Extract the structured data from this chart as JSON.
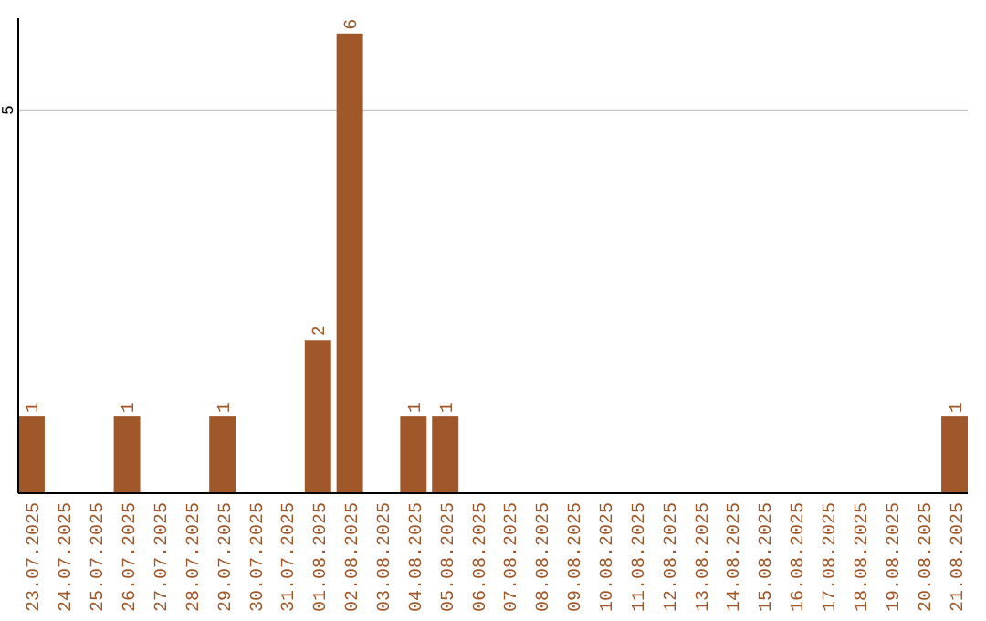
{
  "chart_data": {
    "type": "bar",
    "categories": [
      "23.07.2025",
      "24.07.2025",
      "25.07.2025",
      "26.07.2025",
      "27.07.2025",
      "28.07.2025",
      "29.07.2025",
      "30.07.2025",
      "31.07.2025",
      "01.08.2025",
      "02.08.2025",
      "03.08.2025",
      "04.08.2025",
      "05.08.2025",
      "06.08.2025",
      "07.08.2025",
      "08.08.2025",
      "09.08.2025",
      "10.08.2025",
      "11.08.2025",
      "12.08.2025",
      "13.08.2025",
      "14.08.2025",
      "15.08.2025",
      "16.08.2025",
      "17.08.2025",
      "18.08.2025",
      "19.08.2025",
      "20.08.2025",
      "21.08.2025"
    ],
    "values": [
      1,
      0,
      0,
      1,
      0,
      0,
      1,
      0,
      0,
      2,
      6,
      0,
      1,
      1,
      0,
      0,
      0,
      0,
      0,
      0,
      0,
      0,
      0,
      0,
      0,
      0,
      0,
      0,
      0,
      1
    ],
    "value_labels": [
      "1",
      null,
      null,
      "1",
      null,
      null,
      "1",
      null,
      null,
      "2",
      "6",
      null,
      "1",
      "1",
      null,
      null,
      null,
      null,
      null,
      null,
      null,
      null,
      null,
      null,
      null,
      null,
      null,
      null,
      null,
      "1"
    ],
    "color": "#a0572a",
    "ylim": [
      0,
      6.2
    ],
    "yticks": [
      5
    ],
    "grid": "y"
  }
}
